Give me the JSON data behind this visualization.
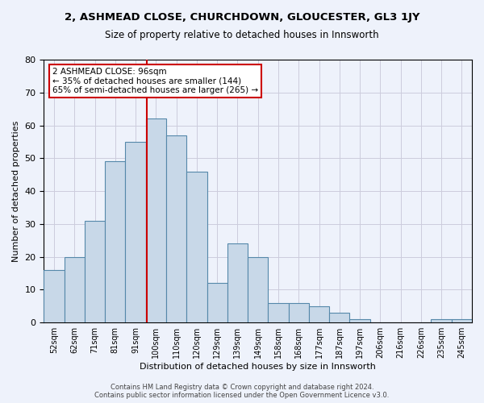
{
  "title1": "2, ASHMEAD CLOSE, CHURCHDOWN, GLOUCESTER, GL3 1JY",
  "title2": "Size of property relative to detached houses in Innsworth",
  "xlabel": "Distribution of detached houses by size in Innsworth",
  "ylabel": "Number of detached properties",
  "bar_labels": [
    "52sqm",
    "62sqm",
    "71sqm",
    "81sqm",
    "91sqm",
    "100sqm",
    "110sqm",
    "120sqm",
    "129sqm",
    "139sqm",
    "149sqm",
    "158sqm",
    "168sqm",
    "177sqm",
    "187sqm",
    "197sqm",
    "206sqm",
    "216sqm",
    "226sqm",
    "235sqm",
    "245sqm"
  ],
  "bar_values": [
    16,
    20,
    31,
    49,
    55,
    62,
    57,
    46,
    12,
    24,
    20,
    6,
    6,
    5,
    3,
    1,
    0,
    0,
    0,
    1,
    1
  ],
  "bar_color": "#c8d8e8",
  "bar_edge_color": "#5588aa",
  "vline_color": "#cc0000",
  "annotation_text": "2 ASHMEAD CLOSE: 96sqm\n← 35% of detached houses are smaller (144)\n65% of semi-detached houses are larger (265) →",
  "annotation_box_color": "white",
  "annotation_box_edge": "#cc0000",
  "ylim": [
    0,
    80
  ],
  "yticks": [
    0,
    10,
    20,
    30,
    40,
    50,
    60,
    70,
    80
  ],
  "footer_text": "Contains HM Land Registry data © Crown copyright and database right 2024.\nContains public sector information licensed under the Open Government Licence v3.0.",
  "background_color": "#eef2fb",
  "grid_color": "#ccccdd"
}
